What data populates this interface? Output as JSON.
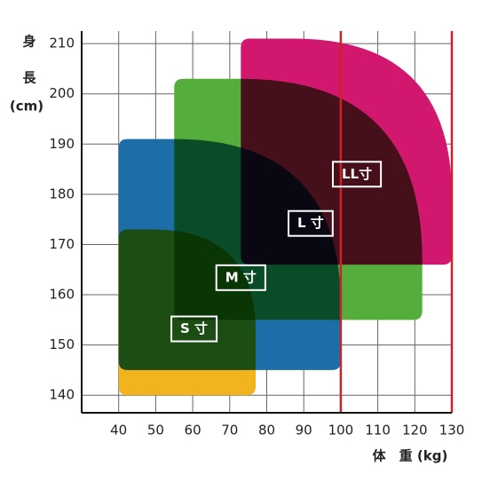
{
  "chart_data": {
    "type": "region",
    "x_label": "体　重 (kg)",
    "y_label": [
      "身",
      "長",
      "(cm)"
    ],
    "xlim": [
      30,
      130
    ],
    "ylim": [
      136.5,
      212.5
    ],
    "xticks": [
      40,
      50,
      60,
      70,
      80,
      90,
      100,
      110,
      120,
      130
    ],
    "yticks": [
      140,
      150,
      160,
      170,
      180,
      190,
      200,
      210
    ],
    "grid": true,
    "reference_lines": {
      "x": [
        100,
        130
      ],
      "color": "#d0202a"
    },
    "regions": [
      {
        "name": "S 寸",
        "color": "#f2b41e",
        "x": [
          40,
          77
        ],
        "y": [
          140,
          173
        ]
      },
      {
        "name": "M 寸",
        "color": "#1d6ea8",
        "x": [
          40,
          100
        ],
        "y": [
          145,
          191
        ]
      },
      {
        "name": "L 寸",
        "color": "#55ad3c",
        "x": [
          55,
          122
        ],
        "y": [
          155,
          203
        ]
      },
      {
        "name": "LL寸",
        "color": "#d2176f",
        "x": [
          73,
          130
        ],
        "y": [
          166,
          211
        ]
      }
    ]
  }
}
